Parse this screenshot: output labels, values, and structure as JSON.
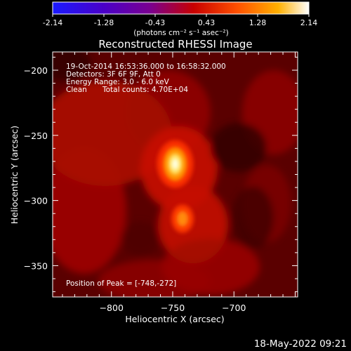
{
  "colorbar": {
    "tick_labels": [
      "-2.14",
      "-1.28",
      "-0.43",
      "0.43",
      "1.28",
      "2.14"
    ],
    "unit_label": "(photons cm⁻² s⁻¹ asec⁻²)",
    "colors": [
      "#1a1aff",
      "#4a00c8",
      "#7a0090",
      "#c80000",
      "#ff5000",
      "#ffb000",
      "#ffffff"
    ]
  },
  "chart_data": {
    "type": "heatmap",
    "title": "Reconstructed RHESSI Image",
    "xlabel": "Heliocentric X (arcsec)",
    "ylabel": "Heliocentric Y (arcsec)",
    "xlim": [
      -848,
      -648
    ],
    "ylim": [
      -374,
      -186
    ],
    "x_ticks": [
      -800,
      -750,
      -700
    ],
    "y_ticks": [
      -200,
      -250,
      -300,
      -350
    ],
    "x_tick_labels": [
      "−800",
      "−750",
      "−700"
    ],
    "y_tick_labels": [
      "−200",
      "−250",
      "−300",
      "−350"
    ],
    "value_range": [
      -2.14,
      2.14
    ],
    "sources": [
      {
        "x": -748,
        "y": -272,
        "peak": 2.14
      },
      {
        "x": -742,
        "y": -314,
        "peak": 1.4
      }
    ],
    "annotations": [
      "19-Oct-2014 16:53:36.000 to 16:58:32.000",
      "Detectors: 3F 6F 9F, Att 0",
      "Energy Range: 3.0 - 6.0 keV",
      "Clean",
      "Total counts: 4.70E+04",
      "Position of Peak = [-748,-272]"
    ]
  },
  "timestamp": "18-May-2022 09:21"
}
